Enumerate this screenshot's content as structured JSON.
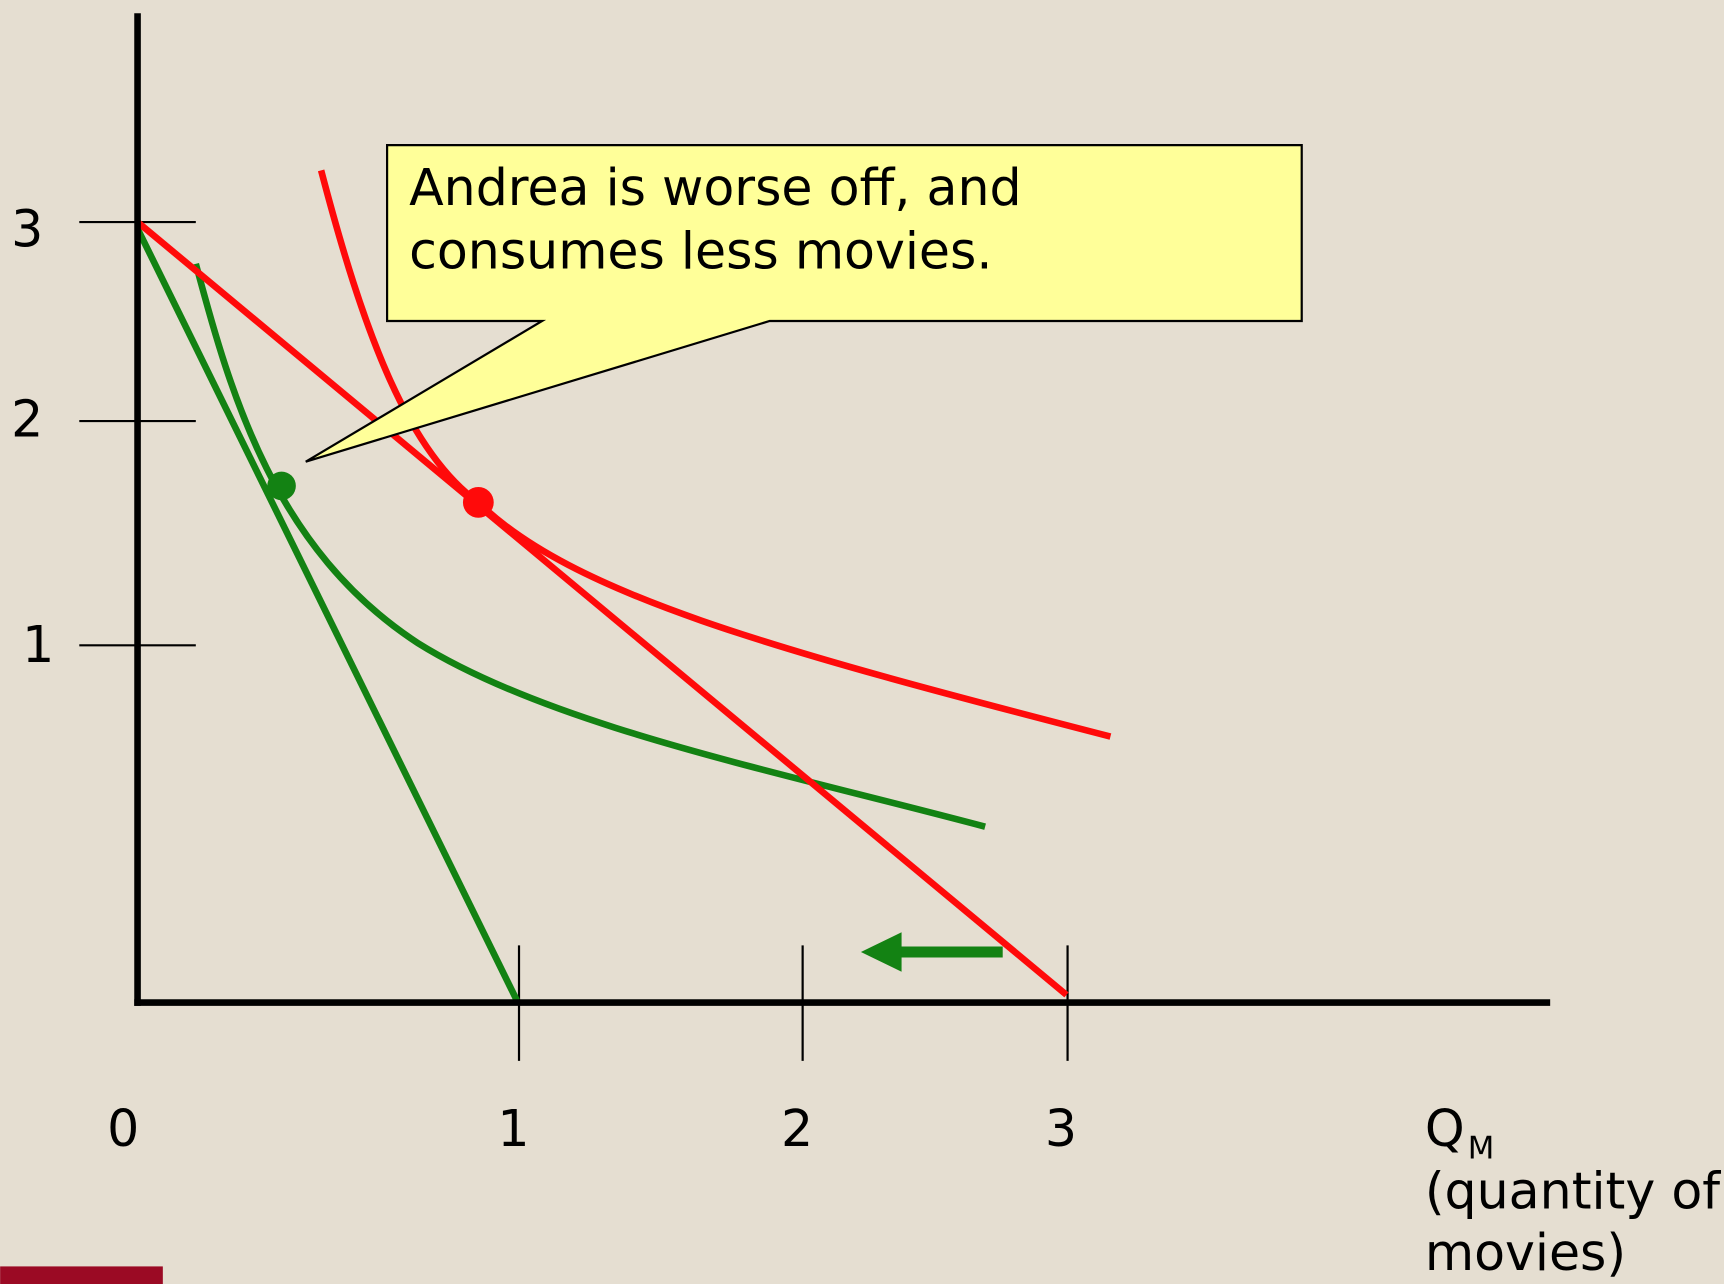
{
  "callout": {
    "lines": [
      "Andrea is worse off, and",
      "consumes less movies."
    ]
  },
  "y_axis": {
    "ticks": [
      "3",
      "2",
      "1"
    ]
  },
  "x_axis": {
    "origin": "0",
    "ticks": [
      "1",
      "2",
      "3"
    ],
    "label": {
      "main": "Q",
      "sub": "M",
      "lines": [
        "(quantity of",
        "movies)"
      ]
    }
  }
}
